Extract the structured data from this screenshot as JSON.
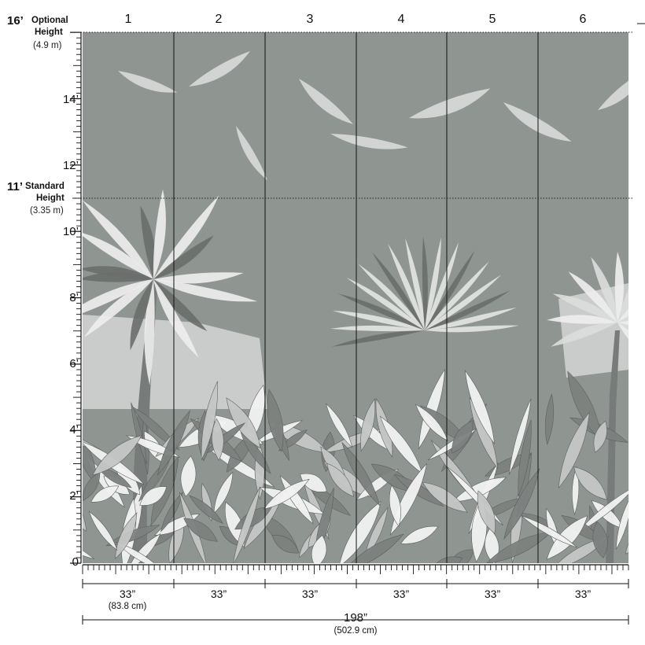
{
  "panels": [
    "1",
    "2",
    "3",
    "4",
    "5",
    "6"
  ],
  "height_ticks": [
    "14’",
    "12’",
    "10’",
    "8’",
    "6’",
    "4’",
    "2’",
    "0"
  ],
  "optional_height": {
    "value": "16’",
    "label_line1": "Optional",
    "label_line2": "Height",
    "metric": "(4.9 m)"
  },
  "standard_height": {
    "value": "11’",
    "label_line1": "Standard",
    "label_line2": "Height",
    "metric": "(3.35 m)"
  },
  "panel_widths": [
    "33”",
    "33”",
    "33”",
    "33”",
    "33”",
    "33”"
  ],
  "panel_width_metric": "(83.8 cm)",
  "total_width": "198”",
  "total_width_metric": "(502.9 cm)",
  "colors": {
    "mural_bg": "#8f9692",
    "sky_light": "#c9ccca",
    "foliage_light": "#eeeeee",
    "foliage_dark": "#6a6e6c",
    "line": "#111111"
  }
}
